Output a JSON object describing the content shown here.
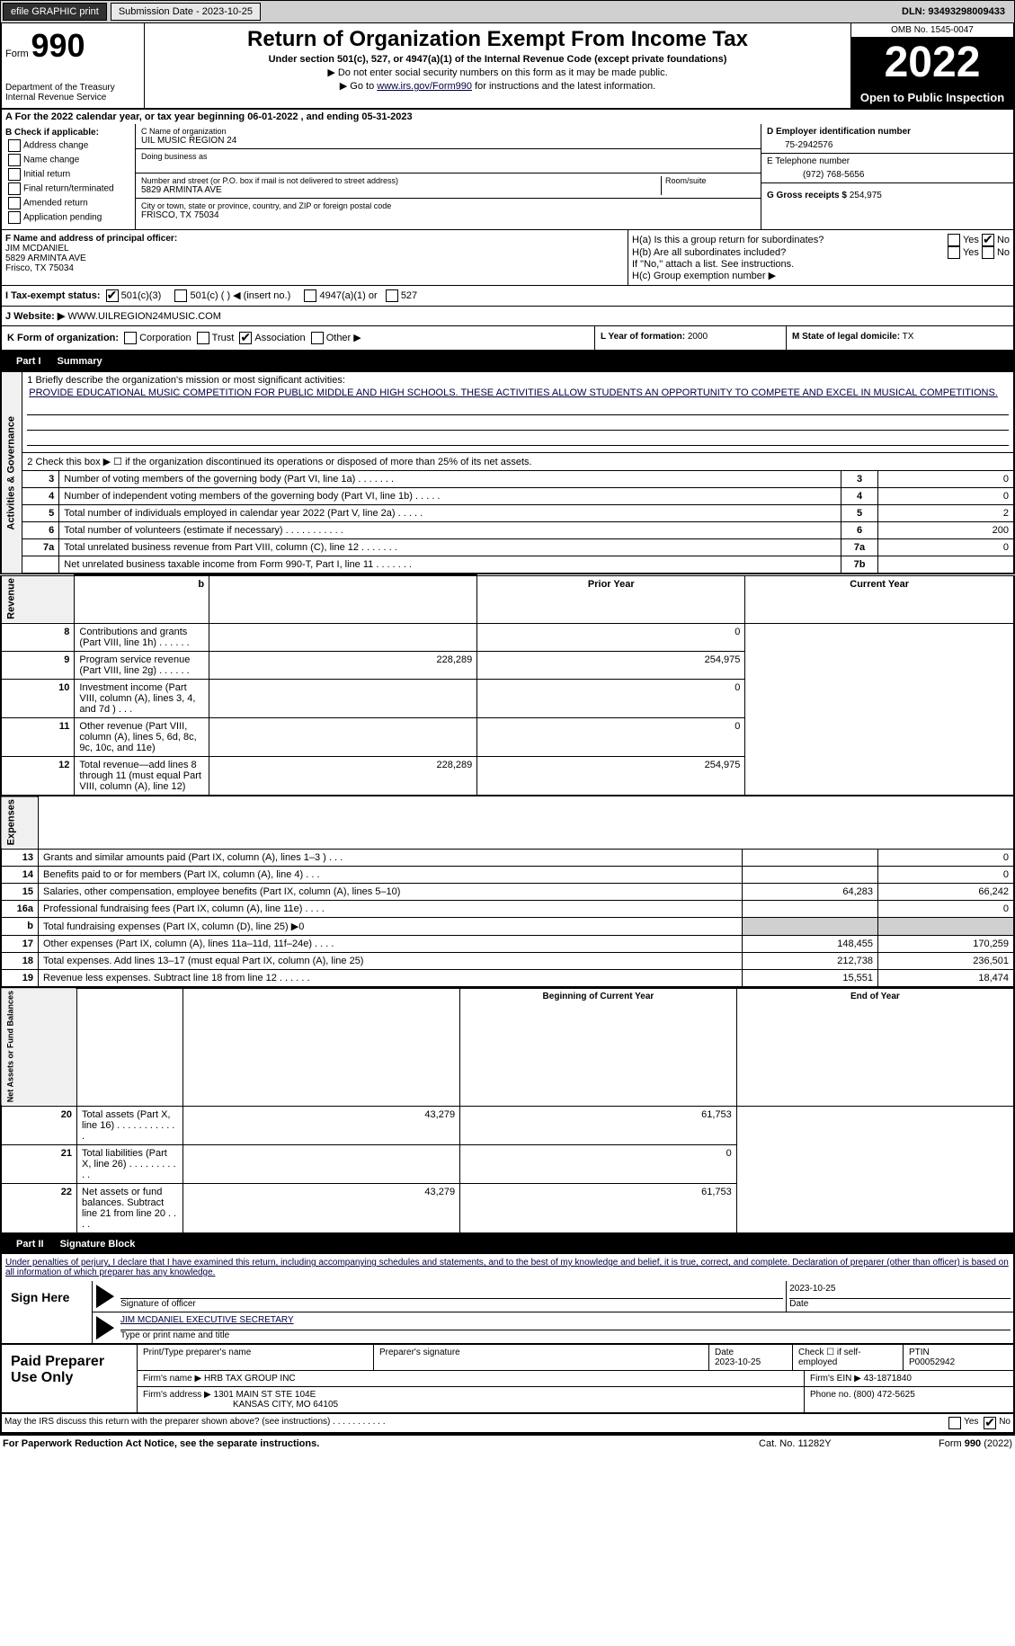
{
  "topbar": {
    "efile": "efile GRAPHIC print",
    "submission": "Submission Date - 2023-10-25",
    "dln": "DLN: 93493298009433"
  },
  "header": {
    "form_label": "Form",
    "form_num": "990",
    "dept": "Department of the Treasury Internal Revenue Service",
    "title": "Return of Organization Exempt From Income Tax",
    "sub1": "Under section 501(c), 527, or 4947(a)(1) of the Internal Revenue Code (except private foundations)",
    "sub2": "▶ Do not enter social security numbers on this form as it may be made public.",
    "sub3_pre": "▶ Go to ",
    "sub3_link": "www.irs.gov/Form990",
    "sub3_post": " for instructions and the latest information.",
    "omb": "OMB No. 1545-0047",
    "year": "2022",
    "open": "Open to Public Inspection"
  },
  "rowA": "A For the 2022 calendar year, or tax year beginning 06-01-2022    , and ending 05-31-2023",
  "colB": {
    "label": "B Check if applicable:",
    "items": [
      "Address change",
      "Name change",
      "Initial return",
      "Final return/terminated",
      "Amended return",
      "Application pending"
    ]
  },
  "colC": {
    "name_label": "C Name of organization",
    "name": "UIL MUSIC REGION 24",
    "dba_label": "Doing business as",
    "dba": "",
    "addr_label": "Number and street (or P.O. box if mail is not delivered to street address)",
    "room_label": "Room/suite",
    "addr": "5829 ARMINTA AVE",
    "city_label": "City or town, state or province, country, and ZIP or foreign postal code",
    "city": "FRISCO, TX  75034"
  },
  "colD": {
    "ein_label": "D Employer identification number",
    "ein": "75-2942576",
    "phone_label": "E Telephone number",
    "phone": "(972) 768-5656",
    "gross_label": "G Gross receipts $",
    "gross": "254,975"
  },
  "rowF": {
    "label": "F Name and address of principal officer:",
    "name": "JIM MCDANIEL",
    "addr1": "5829 ARMINTA AVE",
    "addr2": "Frisco, TX  75034"
  },
  "rowH": {
    "ha": "H(a)  Is this a group return for subordinates?",
    "hb": "H(b)  Are all subordinates included?",
    "hb_note": "If \"No,\" attach a list. See instructions.",
    "hc": "H(c)  Group exemption number ▶",
    "yes": "Yes",
    "no": "No"
  },
  "rowI": {
    "label": "I  Tax-exempt status:",
    "opt1": "501(c)(3)",
    "opt2": "501(c) (  ) ◀ (insert no.)",
    "opt3": "4947(a)(1) or",
    "opt4": "527"
  },
  "rowJ": {
    "label": "J  Website: ▶",
    "value": "WWW.UILREGION24MUSIC.COM"
  },
  "rowK": {
    "label": "K Form of organization:",
    "opts": [
      "Corporation",
      "Trust",
      "Association",
      "Other ▶"
    ],
    "l_label": "L Year of formation:",
    "l_val": "2000",
    "m_label": "M State of legal domicile:",
    "m_val": "TX"
  },
  "part1": {
    "header_num": "Part I",
    "header_title": "Summary",
    "line1_label": "1  Briefly describe the organization's mission or most significant activities:",
    "line1_text": "PROVIDE EDUCATIONAL MUSIC COMPETITION FOR PUBLIC MIDDLE AND HIGH SCHOOLS. THESE ACTIVITIES ALLOW STUDENTS AN OPPORTUNITY TO COMPETE AND EXCEL IN MUSICAL COMPETITIONS.",
    "line2": "2   Check this box ▶ ☐ if the organization discontinued its operations or disposed of more than 25% of its net assets.",
    "vtext_ag": "Activities & Governance",
    "vtext_rev": "Revenue",
    "vtext_exp": "Expenses",
    "vtext_na": "Net Assets or Fund Balances",
    "rows_ag": [
      {
        "n": "3",
        "label": "Number of voting members of the governing body (Part VI, line 1a)   .    .    .    .    .    .    .",
        "box": "3",
        "val": "0"
      },
      {
        "n": "4",
        "label": "Number of independent voting members of the governing body (Part VI, line 1b)  .    .    .    .    .",
        "box": "4",
        "val": "0"
      },
      {
        "n": "5",
        "label": "Total number of individuals employed in calendar year 2022 (Part V, line 2a)   .    .    .    .    .",
        "box": "5",
        "val": "2"
      },
      {
        "n": "6",
        "label": "Total number of volunteers (estimate if necessary)    .    .    .    .    .    .    .    .    .    .    .",
        "box": "6",
        "val": "200"
      },
      {
        "n": "7a",
        "label": "Total unrelated business revenue from Part VIII, column (C), line 12   .    .    .    .    .    .    .",
        "box": "7a",
        "val": "0"
      },
      {
        "n": "",
        "label": "Net unrelated business taxable income from Form 990-T, Part I, line 11  .    .    .    .    .    .    .",
        "box": "7b",
        "val": ""
      }
    ],
    "col_prior": "Prior Year",
    "col_current": "Current Year",
    "rows_rev": [
      {
        "n": "8",
        "label": "Contributions and grants (Part VIII, line 1h)   .    .    .    .    .    .",
        "prior": "",
        "curr": "0"
      },
      {
        "n": "9",
        "label": "Program service revenue (Part VIII, line 2g)   .    .    .    .    .    .",
        "prior": "228,289",
        "curr": "254,975"
      },
      {
        "n": "10",
        "label": "Investment income (Part VIII, column (A), lines 3, 4, and 7d )   .    .    .",
        "prior": "",
        "curr": "0"
      },
      {
        "n": "11",
        "label": "Other revenue (Part VIII, column (A), lines 5, 6d, 8c, 9c, 10c, and 11e)",
        "prior": "",
        "curr": "0"
      },
      {
        "n": "12",
        "label": "Total revenue—add lines 8 through 11 (must equal Part VIII, column (A), line 12)",
        "prior": "228,289",
        "curr": "254,975"
      }
    ],
    "rows_exp": [
      {
        "n": "13",
        "label": "Grants and similar amounts paid (Part IX, column (A), lines 1–3 )  .    .    .",
        "prior": "",
        "curr": "0"
      },
      {
        "n": "14",
        "label": "Benefits paid to or for members (Part IX, column (A), line 4)   .    .    .",
        "prior": "",
        "curr": "0"
      },
      {
        "n": "15",
        "label": "Salaries, other compensation, employee benefits (Part IX, column (A), lines 5–10)",
        "prior": "64,283",
        "curr": "66,242"
      },
      {
        "n": "16a",
        "label": "Professional fundraising fees (Part IX, column (A), line 11e)   .    .    .    .",
        "prior": "",
        "curr": "0"
      },
      {
        "n": "b",
        "label": "Total fundraising expenses (Part IX, column (D), line 25) ▶0",
        "prior": "gray",
        "curr": "gray"
      },
      {
        "n": "17",
        "label": "Other expenses (Part IX, column (A), lines 11a–11d, 11f–24e)   .    .    .    .",
        "prior": "148,455",
        "curr": "170,259"
      },
      {
        "n": "18",
        "label": "Total expenses. Add lines 13–17 (must equal Part IX, column (A), line 25)",
        "prior": "212,738",
        "curr": "236,501"
      },
      {
        "n": "19",
        "label": "Revenue less expenses. Subtract line 18 from line 12  .    .    .    .    .    .",
        "prior": "15,551",
        "curr": "18,474"
      }
    ],
    "col_begin": "Beginning of Current Year",
    "col_end": "End of Year",
    "rows_na": [
      {
        "n": "20",
        "label": "Total assets (Part X, line 16)  .    .    .    .    .    .    .    .    .    .    .    .",
        "prior": "43,279",
        "curr": "61,753"
      },
      {
        "n": "21",
        "label": "Total liabilities (Part X, line 26)   .    .    .    .    .    .    .    .    .    .    .",
        "prior": "",
        "curr": "0"
      },
      {
        "n": "22",
        "label": "Net assets or fund balances. Subtract line 21 from line 20    .    .    .    .",
        "prior": "43,279",
        "curr": "61,753"
      }
    ]
  },
  "part2": {
    "header_num": "Part II",
    "header_title": "Signature Block",
    "declaration": "Under penalties of perjury, I declare that I have examined this return, including accompanying schedules and statements, and to the best of my knowledge and belief, it is true, correct, and complete. Declaration of preparer (other than officer) is based on all information of which preparer has any knowledge.",
    "sign_here": "Sign Here",
    "sig_officer": "Signature of officer",
    "sig_date": "2023-10-25",
    "date_label": "Date",
    "officer_name": "JIM MCDANIEL  EXECUTIVE SECRETARY",
    "type_name": "Type or print name and title",
    "paid_prep": "Paid Preparer Use Only",
    "print_name_label": "Print/Type preparer's name",
    "prep_sig_label": "Preparer's signature",
    "prep_date_label": "Date",
    "prep_date": "2023-10-25",
    "check_if": "Check ☐ if self-employed",
    "ptin_label": "PTIN",
    "ptin": "P00052942",
    "firm_name_label": "Firm's name    ▶",
    "firm_name": "HRB TAX GROUP INC",
    "firm_ein_label": "Firm's EIN ▶",
    "firm_ein": "43-1871840",
    "firm_addr_label": "Firm's address ▶",
    "firm_addr1": "1301 MAIN ST STE 104E",
    "firm_addr2": "KANSAS CITY, MO  64105",
    "phone_label": "Phone no.",
    "phone": "(800) 472-5625",
    "may_irs": "May the IRS discuss this return with the preparer shown above? (see instructions)   .    .    .    .    .    .    .    .    .    .    ."
  },
  "footer": {
    "paperwork": "For Paperwork Reduction Act Notice, see the separate instructions.",
    "cat": "Cat. No. 11282Y",
    "form": "Form 990 (2022)"
  }
}
